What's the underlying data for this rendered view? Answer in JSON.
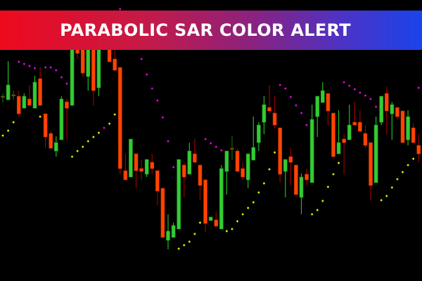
{
  "banner": {
    "title": "PARABOLIC SAR COLOR ALERT"
  },
  "colors": {
    "bull": "#33cc33",
    "bull_wick": "#22bb22",
    "bear": "#ff4400",
    "bear_wick": "#990000",
    "doji": "#0b6b0b",
    "sar_above": "#ff00ff",
    "sar_below": "#ffff00",
    "background": "#000000",
    "banner_start": "#ee0a1d",
    "banner_end": "#1a44ea"
  },
  "chart_data": {
    "type": "candlestick",
    "title": "",
    "xlabel": "",
    "ylabel": "",
    "axes_visible": false,
    "grid": false,
    "ylim": [
      0,
      400
    ],
    "indicator": "Parabolic SAR (magenta above price, yellow below price)",
    "ohlc": [
      [
        263,
        267,
        254,
        263
      ],
      [
        258,
        313,
        258,
        279
      ],
      [
        265,
        271,
        258,
        265
      ],
      [
        263,
        271,
        234,
        238
      ],
      [
        246,
        267,
        246,
        263
      ],
      [
        259,
        279,
        250,
        250
      ],
      [
        246,
        292,
        246,
        283
      ],
      [
        288,
        304,
        250,
        250
      ],
      [
        238,
        238,
        189,
        205
      ],
      [
        210,
        214,
        189,
        189
      ],
      [
        185,
        206,
        177,
        197
      ],
      [
        201,
        263,
        201,
        259
      ],
      [
        255,
        259,
        201,
        246
      ],
      [
        250,
        345,
        250,
        340
      ],
      [
        330,
        335,
        316,
        324
      ],
      [
        340,
        345,
        291,
        296
      ],
      [
        291,
        340,
        271,
        330
      ],
      [
        335,
        340,
        250,
        271
      ],
      [
        275,
        340,
        263,
        332
      ],
      null,
      [
        340,
        345,
        312,
        312
      ],
      [
        316,
        386,
        300,
        300
      ],
      [
        304,
        304,
        152,
        160
      ],
      [
        157,
        181,
        144,
        144
      ],
      [
        148,
        202,
        148,
        202
      ],
      [
        181,
        181,
        132,
        157
      ],
      [
        160,
        172,
        144,
        156
      ],
      [
        152,
        173,
        148,
        173
      ],
      [
        169,
        181,
        152,
        160
      ],
      [
        157,
        157,
        108,
        128
      ],
      [
        132,
        132,
        62,
        62
      ],
      [
        58,
        95,
        45,
        71
      ],
      [
        62,
        83,
        62,
        79
      ],
      [
        74,
        173,
        74,
        173
      ],
      [
        165,
        169,
        119,
        148
      ],
      [
        152,
        197,
        152,
        185
      ],
      [
        181,
        202,
        169,
        169
      ],
      [
        165,
        165,
        115,
        136
      ],
      [
        144,
        144,
        70,
        82
      ],
      [
        86,
        91,
        86,
        91
      ],
      [
        87,
        99,
        78,
        78
      ],
      [
        74,
        165,
        74,
        160
      ],
      [
        156,
        185,
        123,
        185
      ],
      [
        189,
        206,
        172,
        189
      ],
      [
        185,
        189,
        156,
        156
      ],
      [
        160,
        169,
        144,
        148
      ],
      [
        144,
        181,
        132,
        181
      ],
      [
        172,
        234,
        172,
        190
      ],
      [
        197,
        226,
        185,
        222
      ],
      [
        226,
        263,
        209,
        251
      ],
      [
        247,
        279,
        238,
        242
      ],
      [
        239,
        263,
        217,
        222
      ],
      [
        218,
        218,
        140,
        152
      ],
      [
        156,
        173,
        119,
        173
      ],
      [
        177,
        189,
        136,
        169
      ],
      [
        165,
        165,
        123,
        123
      ],
      [
        119,
        153,
        95,
        148
      ],
      [
        152,
        160,
        136,
        144
      ],
      [
        140,
        251,
        140,
        230
      ],
      [
        234,
        263,
        205,
        263
      ],
      [
        254,
        283,
        254,
        271
      ],
      [
        267,
        267,
        222,
        242
      ],
      [
        239,
        239,
        177,
        177
      ],
      [
        181,
        243,
        181,
        197
      ],
      [
        202,
        209,
        152,
        197
      ],
      [
        201,
        251,
        201,
        222
      ],
      [
        226,
        255,
        222,
        222
      ],
      [
        226,
        243,
        213,
        213
      ],
      [
        210,
        222,
        189,
        193
      ],
      [
        197,
        197,
        115,
        136
      ],
      [
        140,
        234,
        140,
        222
      ],
      [
        226,
        263,
        222,
        263
      ],
      [
        267,
        276,
        209,
        242
      ],
      [
        238,
        255,
        201,
        251
      ],
      [
        247,
        247,
        230,
        234
      ],
      [
        242,
        242,
        197,
        197
      ],
      [
        201,
        243,
        193,
        234
      ],
      [
        218,
        225,
        197,
        197
      ],
      [
        193,
        209,
        169,
        181
      ]
    ],
    "sar": [
      207,
      214,
      226,
      312,
      309,
      306,
      303,
      234,
      304,
      304,
      300,
      290,
      281,
      177,
      185,
      191,
      199,
      205,
      211,
      218,
      224,
      237,
      387,
      null,
      null,
      null,
      316,
      294,
      274,
      257,
      233,
      199,
      162,
      46,
      51,
      56,
      67,
      83,
      202,
      196,
      191,
      186,
      71,
      74,
      85,
      95,
      104,
      112,
      126,
      139,
      159,
      183,
      279,
      274,
      262,
      250,
      239,
      222,
      95,
      101,
      114,
      134,
      152,
      168,
      283,
      278,
      273,
      268,
      264,
      259,
      248,
      115,
      121,
      133,
      145,
      155,
      165,
      174,
      275
    ]
  }
}
